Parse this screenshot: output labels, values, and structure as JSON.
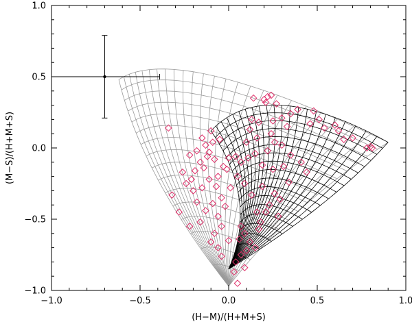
{
  "chart_data": {
    "type": "scatter",
    "title": "",
    "xlabel": "(H−M)/(H+M+S)",
    "ylabel": "(M−S)/(H+M+S)",
    "xlim": [
      -1.0,
      1.0
    ],
    "ylim": [
      -1.0,
      1.0
    ],
    "xticks": [
      -1.0,
      -0.5,
      0.0,
      0.5,
      1.0
    ],
    "yticks": [
      -1.0,
      -0.5,
      0.0,
      0.5,
      1.0
    ],
    "xtick_labels": [
      "−1.0",
      "−0.5",
      "0.0",
      "0.5",
      "1.0"
    ],
    "ytick_labels": [
      "−1.0",
      "−0.5",
      "0.0",
      "0.5",
      "1.0"
    ],
    "grid": false,
    "legend": "none",
    "colors": {
      "points": "#e0306a",
      "grid_black": "#000000",
      "grid_gray": "#9a9a9a",
      "axes": "#000000"
    },
    "error_bar": {
      "x": -0.7,
      "y": 0.5,
      "x_minus": 0.29,
      "x_plus": 0.31,
      "y_minus": 0.29,
      "y_plus": 0.29
    },
    "points": [
      {
        "x": 0.22,
        "y": 0.36
      },
      {
        "x": 0.24,
        "y": 0.37
      },
      {
        "x": 0.2,
        "y": 0.34
      },
      {
        "x": 0.14,
        "y": 0.35
      },
      {
        "x": 0.27,
        "y": 0.31
      },
      {
        "x": 0.21,
        "y": 0.32
      },
      {
        "x": 0.48,
        "y": 0.26
      },
      {
        "x": 0.35,
        "y": 0.24
      },
      {
        "x": 0.39,
        "y": 0.27
      },
      {
        "x": 0.51,
        "y": 0.2
      },
      {
        "x": 0.46,
        "y": 0.17
      },
      {
        "x": 0.6,
        "y": 0.16
      },
      {
        "x": 0.54,
        "y": 0.14
      },
      {
        "x": 0.62,
        "y": 0.12
      },
      {
        "x": 0.65,
        "y": 0.06
      },
      {
        "x": 0.7,
        "y": 0.07
      },
      {
        "x": 0.78,
        "y": 0.0
      },
      {
        "x": 0.8,
        "y": 0.01
      },
      {
        "x": 0.81,
        "y": 0.0
      },
      {
        "x": 0.3,
        "y": 0.21
      },
      {
        "x": 0.25,
        "y": 0.19
      },
      {
        "x": 0.33,
        "y": 0.15
      },
      {
        "x": 0.17,
        "y": 0.18
      },
      {
        "x": 0.13,
        "y": 0.2
      },
      {
        "x": 0.12,
        "y": 0.13
      },
      {
        "x": 0.16,
        "y": 0.07
      },
      {
        "x": 0.1,
        "y": 0.04
      },
      {
        "x": 0.24,
        "y": 0.1
      },
      {
        "x": 0.26,
        "y": 0.04
      },
      {
        "x": 0.3,
        "y": 0.02
      },
      {
        "x": 0.22,
        "y": -0.02
      },
      {
        "x": 0.35,
        "y": -0.05
      },
      {
        "x": 0.15,
        "y": -0.04
      },
      {
        "x": 0.07,
        "y": -0.1
      },
      {
        "x": 0.04,
        "y": -0.06
      },
      {
        "x": 0.11,
        "y": -0.07
      },
      {
        "x": 0.19,
        "y": -0.12
      },
      {
        "x": 0.25,
        "y": -0.15
      },
      {
        "x": 0.31,
        "y": -0.13
      },
      {
        "x": 0.41,
        "y": -0.1
      },
      {
        "x": 0.44,
        "y": -0.17
      },
      {
        "x": 0.34,
        "y": -0.24
      },
      {
        "x": 0.19,
        "y": -0.27
      },
      {
        "x": 0.26,
        "y": -0.32
      },
      {
        "x": 0.29,
        "y": -0.36
      },
      {
        "x": 0.23,
        "y": -0.4
      },
      {
        "x": 0.21,
        "y": -0.45
      },
      {
        "x": 0.28,
        "y": -0.48
      },
      {
        "x": 0.18,
        "y": -0.52
      },
      {
        "x": 0.17,
        "y": -0.57
      },
      {
        "x": 0.09,
        "y": -0.6
      },
      {
        "x": 0.06,
        "y": -0.64
      },
      {
        "x": 0.12,
        "y": -0.66
      },
      {
        "x": 0.15,
        "y": -0.7
      },
      {
        "x": 0.1,
        "y": -0.72
      },
      {
        "x": 0.07,
        "y": -0.75
      },
      {
        "x": 0.04,
        "y": -0.8
      },
      {
        "x": 0.09,
        "y": -0.84
      },
      {
        "x": 0.03,
        "y": -0.87
      },
      {
        "x": 0.05,
        "y": -0.95
      },
      {
        "x": 0.0,
        "y": -0.65
      },
      {
        "x": 0.07,
        "y": -0.55
      },
      {
        "x": 0.16,
        "y": -0.45
      },
      {
        "x": -0.02,
        "y": -0.41
      },
      {
        "x": 0.13,
        "y": -0.33
      },
      {
        "x": 0.01,
        "y": -0.28
      },
      {
        "x": 0.09,
        "y": -0.25
      },
      {
        "x": 0.05,
        "y": -0.2
      },
      {
        "x": -0.01,
        "y": -0.15
      },
      {
        "x": 0.0,
        "y": -0.07
      },
      {
        "x": -0.03,
        "y": -0.13
      },
      {
        "x": -0.06,
        "y": -0.2
      },
      {
        "x": -0.08,
        "y": -0.08
      },
      {
        "x": -0.11,
        "y": -0.03
      },
      {
        "x": -0.13,
        "y": 0.02
      },
      {
        "x": -0.09,
        "y": 0.04
      },
      {
        "x": -0.15,
        "y": 0.07
      },
      {
        "x": -0.1,
        "y": 0.12
      },
      {
        "x": -0.05,
        "y": 0.06
      },
      {
        "x": -0.18,
        "y": -0.02
      },
      {
        "x": -0.22,
        "y": -0.05
      },
      {
        "x": -0.12,
        "y": -0.06
      },
      {
        "x": -0.16,
        "y": -0.1
      },
      {
        "x": -0.14,
        "y": -0.14
      },
      {
        "x": -0.19,
        "y": -0.16
      },
      {
        "x": -0.21,
        "y": -0.22
      },
      {
        "x": -0.24,
        "y": -0.25
      },
      {
        "x": -0.26,
        "y": -0.17
      },
      {
        "x": -0.2,
        "y": -0.3
      },
      {
        "x": -0.15,
        "y": -0.28
      },
      {
        "x": -0.11,
        "y": -0.22
      },
      {
        "x": -0.07,
        "y": -0.27
      },
      {
        "x": -0.04,
        "y": -0.35
      },
      {
        "x": -0.09,
        "y": -0.39
      },
      {
        "x": -0.06,
        "y": -0.48
      },
      {
        "x": -0.13,
        "y": -0.44
      },
      {
        "x": -0.18,
        "y": -0.38
      },
      {
        "x": -0.28,
        "y": -0.45
      },
      {
        "x": -0.32,
        "y": -0.33
      },
      {
        "x": -0.22,
        "y": -0.55
      },
      {
        "x": -0.16,
        "y": -0.52
      },
      {
        "x": -0.08,
        "y": -0.6
      },
      {
        "x": -0.04,
        "y": -0.55
      },
      {
        "x": -0.1,
        "y": -0.66
      },
      {
        "x": -0.06,
        "y": -0.7
      },
      {
        "x": -0.34,
        "y": 0.14
      },
      {
        "x": -0.04,
        "y": -0.76
      }
    ]
  }
}
